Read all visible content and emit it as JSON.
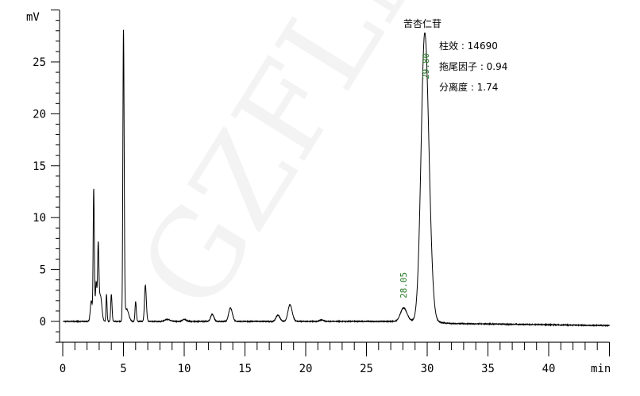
{
  "chart_data": {
    "type": "line",
    "title": "",
    "xlabel": "min",
    "ylabel": "mV",
    "xlim": [
      0,
      45
    ],
    "ylim": [
      -2,
      30
    ],
    "x_ticks": [
      "0",
      "5",
      "10",
      "15",
      "20",
      "25",
      "30",
      "35",
      "40"
    ],
    "y_ticks": [
      "0",
      "5",
      "10",
      "15",
      "20",
      "25"
    ],
    "grid": false,
    "line_color": "#000000",
    "peaks": [
      {
        "time": 2.35,
        "height": 2.0,
        "width": 0.08
      },
      {
        "time": 2.55,
        "height": 12.6,
        "width": 0.045
      },
      {
        "time": 2.75,
        "height": 3.8,
        "width": 0.06
      },
      {
        "time": 2.92,
        "height": 7.0,
        "width": 0.05
      },
      {
        "time": 3.1,
        "height": 2.5,
        "width": 0.1
      },
      {
        "time": 3.6,
        "height": 2.6,
        "width": 0.04
      },
      {
        "time": 4.0,
        "height": 2.6,
        "width": 0.05
      },
      {
        "time": 5.0,
        "height": 27.8,
        "width": 0.05
      },
      {
        "time": 5.25,
        "height": 1.2,
        "width": 0.15
      },
      {
        "time": 6.0,
        "height": 1.9,
        "width": 0.05
      },
      {
        "time": 6.8,
        "height": 3.5,
        "width": 0.07
      },
      {
        "time": 8.6,
        "height": 0.2,
        "width": 0.2
      },
      {
        "time": 10.0,
        "height": 0.2,
        "width": 0.15
      },
      {
        "time": 12.3,
        "height": 0.7,
        "width": 0.12
      },
      {
        "time": 13.8,
        "height": 1.3,
        "width": 0.14
      },
      {
        "time": 17.7,
        "height": 0.6,
        "width": 0.15
      },
      {
        "time": 18.7,
        "height": 1.6,
        "width": 0.16
      },
      {
        "time": 21.3,
        "height": 0.15,
        "width": 0.15
      },
      {
        "time": 28.05,
        "height": 1.3,
        "width": 0.25
      },
      {
        "time": 29.8,
        "height": 27.8,
        "width": 0.3
      }
    ],
    "baseline": [
      [
        0,
        0
      ],
      [
        30,
        0
      ],
      [
        32,
        -0.2
      ],
      [
        45,
        -0.4
      ]
    ],
    "annotations": {
      "peak_label": "苦杏仁苷",
      "plates": "柱效 : 14690",
      "tailing": "拖尾因子 : 0.94",
      "resolution": "分离度 : 1.74",
      "rt_main": "29.80",
      "rt_minor": "28.05"
    }
  },
  "watermark": "GZFLM"
}
